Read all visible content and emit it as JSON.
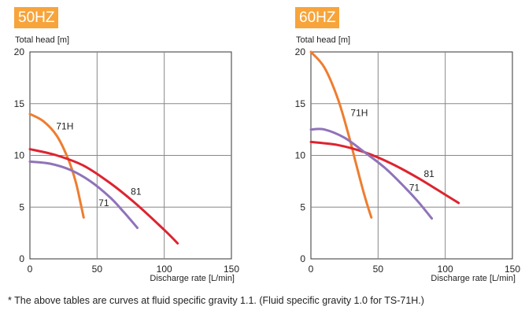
{
  "footnote": "* The above tables are curves at fluid specific gravity 1.1. (Fluid specific gravity 1.0 for TS-71H.)",
  "colors": {
    "badge": "#f7a43a",
    "grid": "#888888",
    "axis": "#333333"
  },
  "chart_data": [
    {
      "type": "line",
      "title": "50HZ",
      "ylabel": "Total head [m]",
      "xlabel": "Discharge rate [L/min]",
      "xlim": [
        0,
        150
      ],
      "ylim": [
        0,
        20
      ],
      "xticks": [
        0,
        50,
        100,
        150
      ],
      "yticks": [
        0,
        5,
        10,
        15,
        20
      ],
      "grid": true,
      "series": [
        {
          "name": "71H",
          "color": "#ee7d30",
          "x": [
            0,
            10,
            20,
            28,
            34,
            38,
            40
          ],
          "y": [
            14,
            13.3,
            11.9,
            9.8,
            7.5,
            5.2,
            4.0
          ]
        },
        {
          "name": "81",
          "color": "#dd2430",
          "x": [
            0,
            20,
            40,
            60,
            80,
            100,
            110
          ],
          "y": [
            10.6,
            10.0,
            9.0,
            7.3,
            5.2,
            2.8,
            1.5
          ]
        },
        {
          "name": "71",
          "color": "#8f73b9",
          "x": [
            0,
            15,
            30,
            45,
            60,
            70,
            80
          ],
          "y": [
            9.4,
            9.2,
            8.6,
            7.5,
            5.9,
            4.5,
            3.0
          ]
        }
      ],
      "labels": [
        {
          "text": "71H",
          "x": 26,
          "y": 12.8
        },
        {
          "text": "81",
          "x": 79,
          "y": 6.5
        },
        {
          "text": "71",
          "x": 55,
          "y": 5.4
        }
      ]
    },
    {
      "type": "line",
      "title": "60HZ",
      "ylabel": "Total head [m]",
      "xlabel": "Discharge rate [L/min]",
      "xlim": [
        0,
        150
      ],
      "ylim": [
        0,
        20
      ],
      "xticks": [
        0,
        50,
        100,
        150
      ],
      "yticks": [
        0,
        5,
        10,
        15,
        20
      ],
      "grid": true,
      "series": [
        {
          "name": "71H",
          "color": "#ee7d30",
          "x": [
            0,
            10,
            20,
            28,
            33,
            38,
            42,
            45
          ],
          "y": [
            20,
            18.5,
            15.5,
            12.0,
            9.5,
            7.0,
            5.2,
            4.0
          ]
        },
        {
          "name": "81",
          "color": "#dd2430",
          "x": [
            0,
            20,
            40,
            60,
            80,
            100,
            110
          ],
          "y": [
            11.3,
            11.0,
            10.3,
            9.2,
            7.8,
            6.2,
            5.4
          ]
        },
        {
          "name": "71",
          "color": "#8f73b9",
          "x": [
            0,
            10,
            25,
            40,
            55,
            70,
            80,
            90
          ],
          "y": [
            12.5,
            12.5,
            11.7,
            10.3,
            8.8,
            6.9,
            5.5,
            3.9
          ]
        }
      ],
      "labels": [
        {
          "text": "71H",
          "x": 36,
          "y": 14.1
        },
        {
          "text": "81",
          "x": 88,
          "y": 8.2
        },
        {
          "text": "71",
          "x": 77,
          "y": 6.9
        }
      ]
    }
  ]
}
